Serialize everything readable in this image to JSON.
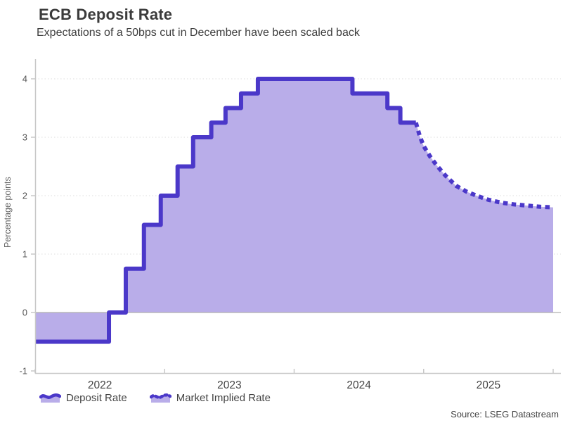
{
  "header": {
    "title": "ECB Deposit Rate",
    "subtitle": "Expectations of a 50bps cut in December have been scaled back"
  },
  "chart_data": {
    "type": "area",
    "title": "ECB Deposit Rate",
    "subtitle": "Expectations of a 50bps cut in December have been scaled back",
    "xlabel": "",
    "ylabel": "Percentage points",
    "x_domain": [
      2022,
      2026
    ],
    "y_domain": [
      -1,
      4
    ],
    "yticks": [
      -1,
      0,
      1,
      2,
      3,
      4
    ],
    "x_tick_years": [
      2022,
      2023,
      2024,
      2025,
      2026
    ],
    "x_year_labels": [
      "2022",
      "2023",
      "2024",
      "2025"
    ],
    "grid": "horizontal-dotted",
    "legend_position": "bottom-left",
    "series": [
      {
        "name": "Deposit Rate",
        "style": "solid-step",
        "points": [
          [
            2022.0,
            -0.5
          ],
          [
            2022.57,
            0.0
          ],
          [
            2022.7,
            0.75
          ],
          [
            2022.84,
            1.5
          ],
          [
            2022.97,
            2.0
          ],
          [
            2023.1,
            2.5
          ],
          [
            2023.22,
            3.0
          ],
          [
            2023.36,
            3.25
          ],
          [
            2023.47,
            3.5
          ],
          [
            2023.59,
            3.75
          ],
          [
            2023.72,
            4.0
          ],
          [
            2024.45,
            3.75
          ],
          [
            2024.72,
            3.5
          ],
          [
            2024.82,
            3.25
          ],
          [
            2024.94,
            3.25
          ]
        ]
      },
      {
        "name": "Market Implied Rate",
        "style": "dotted",
        "points": [
          [
            2024.94,
            3.25
          ],
          [
            2024.97,
            3.02
          ],
          [
            2025.0,
            2.85
          ],
          [
            2025.05,
            2.67
          ],
          [
            2025.1,
            2.52
          ],
          [
            2025.17,
            2.34
          ],
          [
            2025.25,
            2.17
          ],
          [
            2025.33,
            2.07
          ],
          [
            2025.42,
            1.99
          ],
          [
            2025.5,
            1.93
          ],
          [
            2025.6,
            1.88
          ],
          [
            2025.7,
            1.85
          ],
          [
            2025.8,
            1.83
          ],
          [
            2025.9,
            1.81
          ],
          [
            2026.0,
            1.8
          ]
        ]
      }
    ],
    "colors": {
      "line": "#4b38c9",
      "fill": "#b9ade9",
      "grid": "#e4e4e4",
      "zero_line": "#b0b0b0",
      "axis": "#c8c8c8",
      "tick_label": "#555555",
      "year_label": "#444444"
    }
  },
  "legend": {
    "items": [
      {
        "label": "Deposit Rate"
      },
      {
        "label": "Market Implied Rate"
      }
    ]
  },
  "source": "Source: LSEG Datastream"
}
